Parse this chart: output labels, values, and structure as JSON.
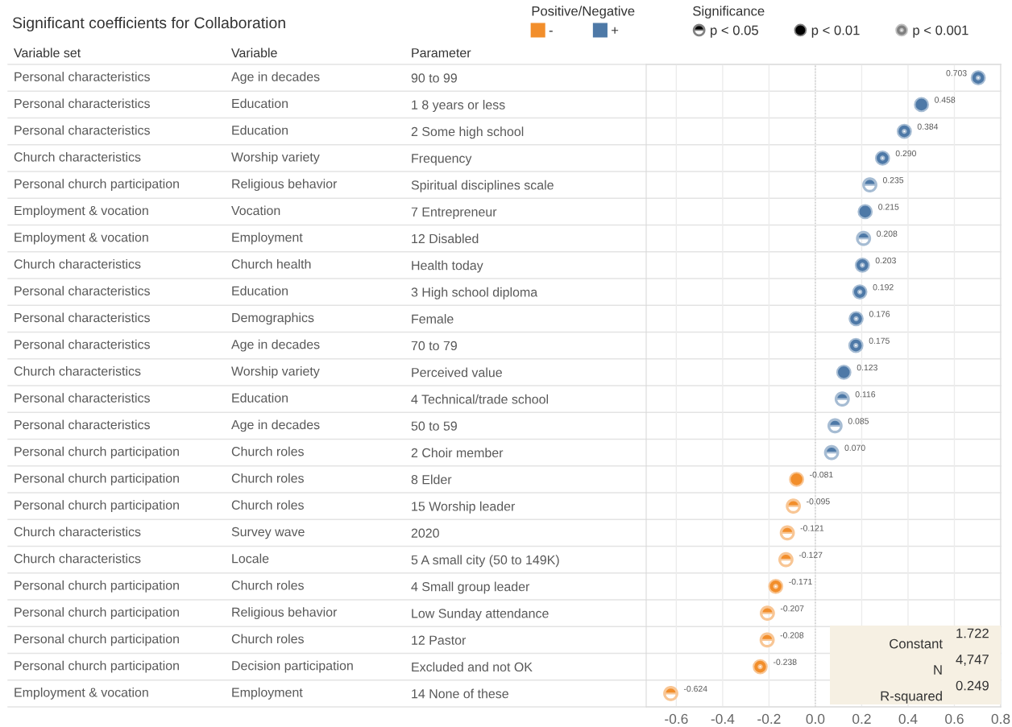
{
  "chart_data": {
    "type": "scatter",
    "orientation": "horizontal",
    "title": "Significant coefficients for Collaboration",
    "ylabel": "Parameter",
    "marker": "circle",
    "grid": "x",
    "categories": [
      "90 to 99",
      "1 8 years or less",
      "2 Some high school",
      "Frequency",
      "Spiritual disciplines scale",
      "7 Entrepreneur",
      "12 Disabled",
      "Health today",
      "3 High school diploma",
      "Female",
      "70 to 79",
      "Perceived value",
      "4 Technical/trade school",
      "50 to 59",
      "2 Choir member",
      "8 Elder",
      "15 Worship leader",
      "2020",
      "5 A small city (50 to 149K)",
      "4 Small group leader",
      "Low Sunday attendance",
      "12 Pastor",
      "Excluded and not OK",
      "14 None of these"
    ],
    "xlim": [
      -0.73,
      0.8
    ],
    "xticks": [
      -0.6,
      -0.4,
      -0.2,
      {
        "value": 0,
        "label": "0.0"
      },
      0.2,
      0.4,
      0.6,
      0.8
    ],
    "ref_lines": [
      {
        "axis": "x",
        "value": 0,
        "line_style": "dotted",
        "color": "#c8c8c8"
      }
    ],
    "series": [
      {
        "color": "#000000",
        "values": [
          null,
          null,
          null,
          null,
          0.235,
          null,
          0.208,
          null,
          null,
          null,
          null,
          null,
          0.116,
          0.085,
          0.07,
          null,
          -0.095,
          -0.121,
          -0.127,
          null,
          -0.207,
          -0.208,
          null,
          -0.624
        ],
        "colors": [
          null,
          null,
          null,
          null,
          "#4e79a7",
          null,
          "#4e79a7",
          null,
          null,
          null,
          null,
          null,
          "#4e79a7",
          "#4e79a7",
          "#4e79a7",
          null,
          "#f28e2b",
          "#f28e2b",
          "#f28e2b",
          null,
          "#f28e2b",
          "#f28e2b",
          null,
          "#f28e2b"
        ],
        "value_labels": [
          null,
          null,
          null,
          null,
          "0.235",
          null,
          "0.208",
          null,
          null,
          null,
          null,
          null,
          "0.116",
          "0.085",
          "0.070",
          null,
          "-0.095",
          "-0.121",
          "-0.127",
          null,
          "-0.207",
          "-0.208",
          null,
          "-0.624"
        ]
      },
      {
        "color": "#000000",
        "values": [
          null,
          0.458,
          null,
          null,
          null,
          0.215,
          null,
          null,
          null,
          null,
          null,
          0.123,
          null,
          null,
          null,
          -0.081,
          null,
          null,
          null,
          null,
          null,
          null,
          null,
          null
        ],
        "colors": [
          null,
          "#4e79a7",
          null,
          null,
          null,
          "#4e79a7",
          null,
          null,
          null,
          null,
          null,
          "#4e79a7",
          null,
          null,
          null,
          "#f28e2b",
          null,
          null,
          null,
          null,
          null,
          null,
          null,
          null
        ],
        "value_labels": [
          null,
          "0.458",
          null,
          null,
          null,
          "0.215",
          null,
          null,
          null,
          null,
          null,
          "0.123",
          null,
          null,
          null,
          "-0.081",
          null,
          null,
          null,
          null,
          null,
          null,
          null,
          null
        ]
      },
      {
        "color": "#808080",
        "values": [
          0.703,
          null,
          0.384,
          0.29,
          null,
          null,
          null,
          0.203,
          0.192,
          0.176,
          0.175,
          null,
          null,
          null,
          null,
          null,
          null,
          null,
          null,
          -0.171,
          null,
          null,
          -0.238,
          null
        ],
        "colors": [
          "#4e79a7",
          null,
          "#4e79a7",
          "#4e79a7",
          null,
          null,
          null,
          "#4e79a7",
          "#4e79a7",
          "#4e79a7",
          "#4e79a7",
          null,
          null,
          null,
          null,
          null,
          null,
          null,
          null,
          "#f28e2b",
          null,
          null,
          "#f28e2b",
          null
        ],
        "value_labels": [
          "0.703",
          null,
          "0.384",
          "0.290",
          null,
          null,
          null,
          "0.203",
          "0.192",
          "0.176",
          "0.175",
          null,
          null,
          null,
          null,
          null,
          null,
          null,
          null,
          "-0.171",
          null,
          null,
          "-0.238",
          null
        ]
      }
    ],
    "annotations": [
      "Variable set",
      "Variable",
      "Personal characteristics",
      "Age in decades",
      "Personal characteristics",
      "Education",
      "Personal characteristics",
      "Education",
      "Church characteristics",
      "Worship variety",
      "Personal church participation",
      "Religious behavior",
      "Employment & vocation",
      "Vocation",
      "Employment & vocation",
      "Employment",
      "Church characteristics",
      "Church health",
      "Personal characteristics",
      "Education",
      "Personal characteristics",
      "Demographics",
      "Personal characteristics",
      "Age in decades",
      "Church characteristics",
      "Worship variety",
      "Personal characteristics",
      "Education",
      "Personal characteristics",
      "Age in decades",
      "Personal church participation",
      "Church roles",
      "Personal church participation",
      "Church roles",
      "Personal church participation",
      "Church roles",
      "Church characteristics",
      "Survey wave",
      "Church characteristics",
      "Locale",
      "Personal church participation",
      "Church roles",
      "Personal church participation",
      "Religious behavior",
      "Personal church participation",
      "Church roles",
      "Personal church participation",
      "Decision participation",
      "Employment & vocation",
      "Employment",
      "Constant",
      "1.722",
      "N",
      "4,747",
      "R-squared",
      "0.249",
      "Positive/Negative",
      "-",
      "+",
      "Significance",
      "p < 0.05",
      "p < 0.01",
      "p < 0.001"
    ]
  }
}
